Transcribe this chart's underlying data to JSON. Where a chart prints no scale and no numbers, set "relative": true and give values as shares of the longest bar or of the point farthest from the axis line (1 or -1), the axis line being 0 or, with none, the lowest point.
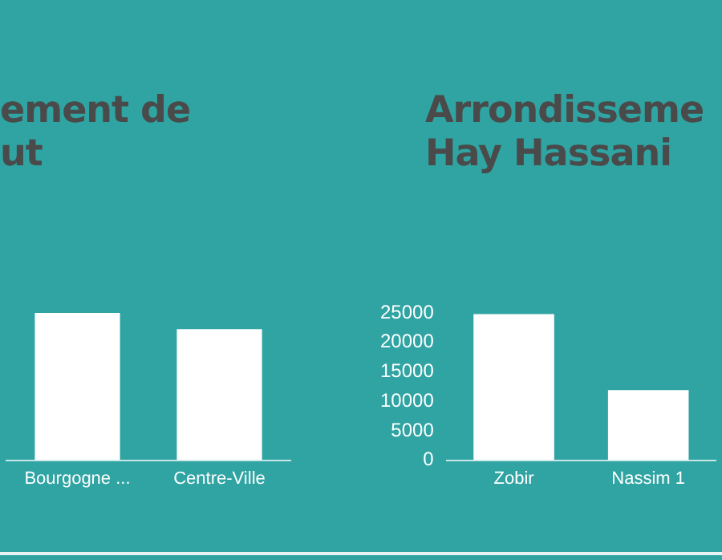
{
  "chart_data": [
    {
      "type": "bar",
      "title": "ement de\nut",
      "categories": [
        "Bourgogne ...",
        "Centre-Ville"
      ],
      "values": [
        1,
        0.89
      ],
      "color": "#ffffff",
      "relative": true
    },
    {
      "type": "bar",
      "title": "Arrondisseme\nHay Hassani",
      "categories": [
        "Zobir",
        "Nassim 1"
      ],
      "values": [
        24800,
        11900
      ],
      "color": "#ffffff",
      "ylim": [
        0,
        25000
      ],
      "yticks": [
        0,
        5000,
        10000,
        15000,
        20000,
        25000
      ]
    }
  ]
}
